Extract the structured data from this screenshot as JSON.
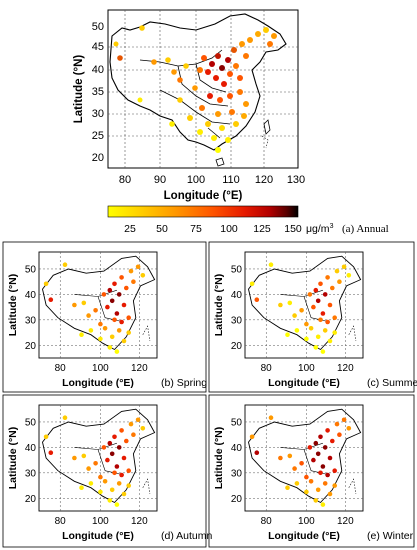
{
  "axis": {
    "xlabel": "Longitude (°E)",
    "ylabel": "Latitude (°N)"
  },
  "colorbar": {
    "ticks": [
      "25",
      "50",
      "75",
      "100",
      "125",
      "150"
    ],
    "unit": "μg/m",
    "unit_sup": "3",
    "colors": [
      "#ffff00",
      "#ffcc00",
      "#ff9900",
      "#ff5500",
      "#e61a00",
      "#b30000",
      "#5a0000",
      "#000000"
    ]
  },
  "panels": [
    {
      "id": "annual",
      "label": "(a) Annual",
      "lon_ticks": [
        "80",
        "90",
        "100",
        "110",
        "120",
        "130"
      ],
      "lat_ticks": [
        "20",
        "25",
        "30",
        "35",
        "40",
        "45",
        "50"
      ]
    },
    {
      "id": "spring",
      "label": "(b) Spring",
      "lon_ticks": [
        "80",
        "100",
        "120"
      ],
      "lat_ticks": [
        "20",
        "30",
        "40",
        "50"
      ]
    },
    {
      "id": "summer",
      "label": "(c) Summer",
      "lon_ticks": [
        "80",
        "100",
        "120"
      ],
      "lat_ticks": [
        "20",
        "30",
        "40",
        "50"
      ]
    },
    {
      "id": "autumn",
      "label": "(d) Autumn",
      "lon_ticks": [
        "80",
        "100",
        "120"
      ],
      "lat_ticks": [
        "20",
        "30",
        "40",
        "50"
      ]
    },
    {
      "id": "winter",
      "label": "(e) Winter",
      "lon_ticks": [
        "80",
        "100",
        "120"
      ],
      "lat_ticks": [
        "20",
        "30",
        "40",
        "50"
      ]
    }
  ]
}
